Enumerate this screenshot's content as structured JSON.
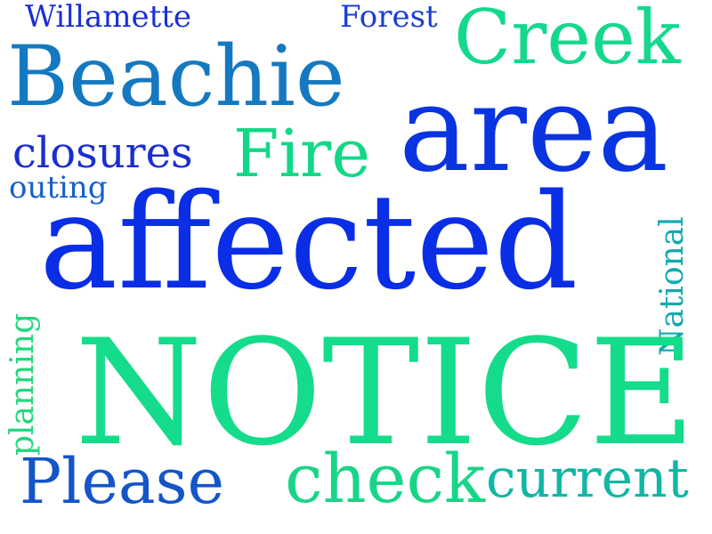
{
  "words": {
    "willamette": {
      "text": "Willamette",
      "color": "#1a2fd6"
    },
    "forest": {
      "text": "Forest",
      "color": "#1a3fd0"
    },
    "creek": {
      "text": "Creek",
      "color": "#14d88e"
    },
    "beachie": {
      "text": "Beachie",
      "color": "#1479c0"
    },
    "area": {
      "text": "area",
      "color": "#0a34e0"
    },
    "closures": {
      "text": "closures",
      "color": "#1a2ed0"
    },
    "fire": {
      "text": "Fire",
      "color": "#12d886"
    },
    "outing": {
      "text": "outing",
      "color": "#1660c8"
    },
    "affected": {
      "text": "affected",
      "color": "#0a2de6"
    },
    "national": {
      "text": "National",
      "color": "#14a8b0"
    },
    "planning": {
      "text": "planning",
      "color": "#22d87e"
    },
    "notice": {
      "text": "NOTICE",
      "color": "#14dc8a"
    },
    "please": {
      "text": "Please",
      "color": "#1455c8"
    },
    "check": {
      "text": "check",
      "color": "#1ad487"
    },
    "current": {
      "text": "current",
      "color": "#12b6a4"
    }
  }
}
